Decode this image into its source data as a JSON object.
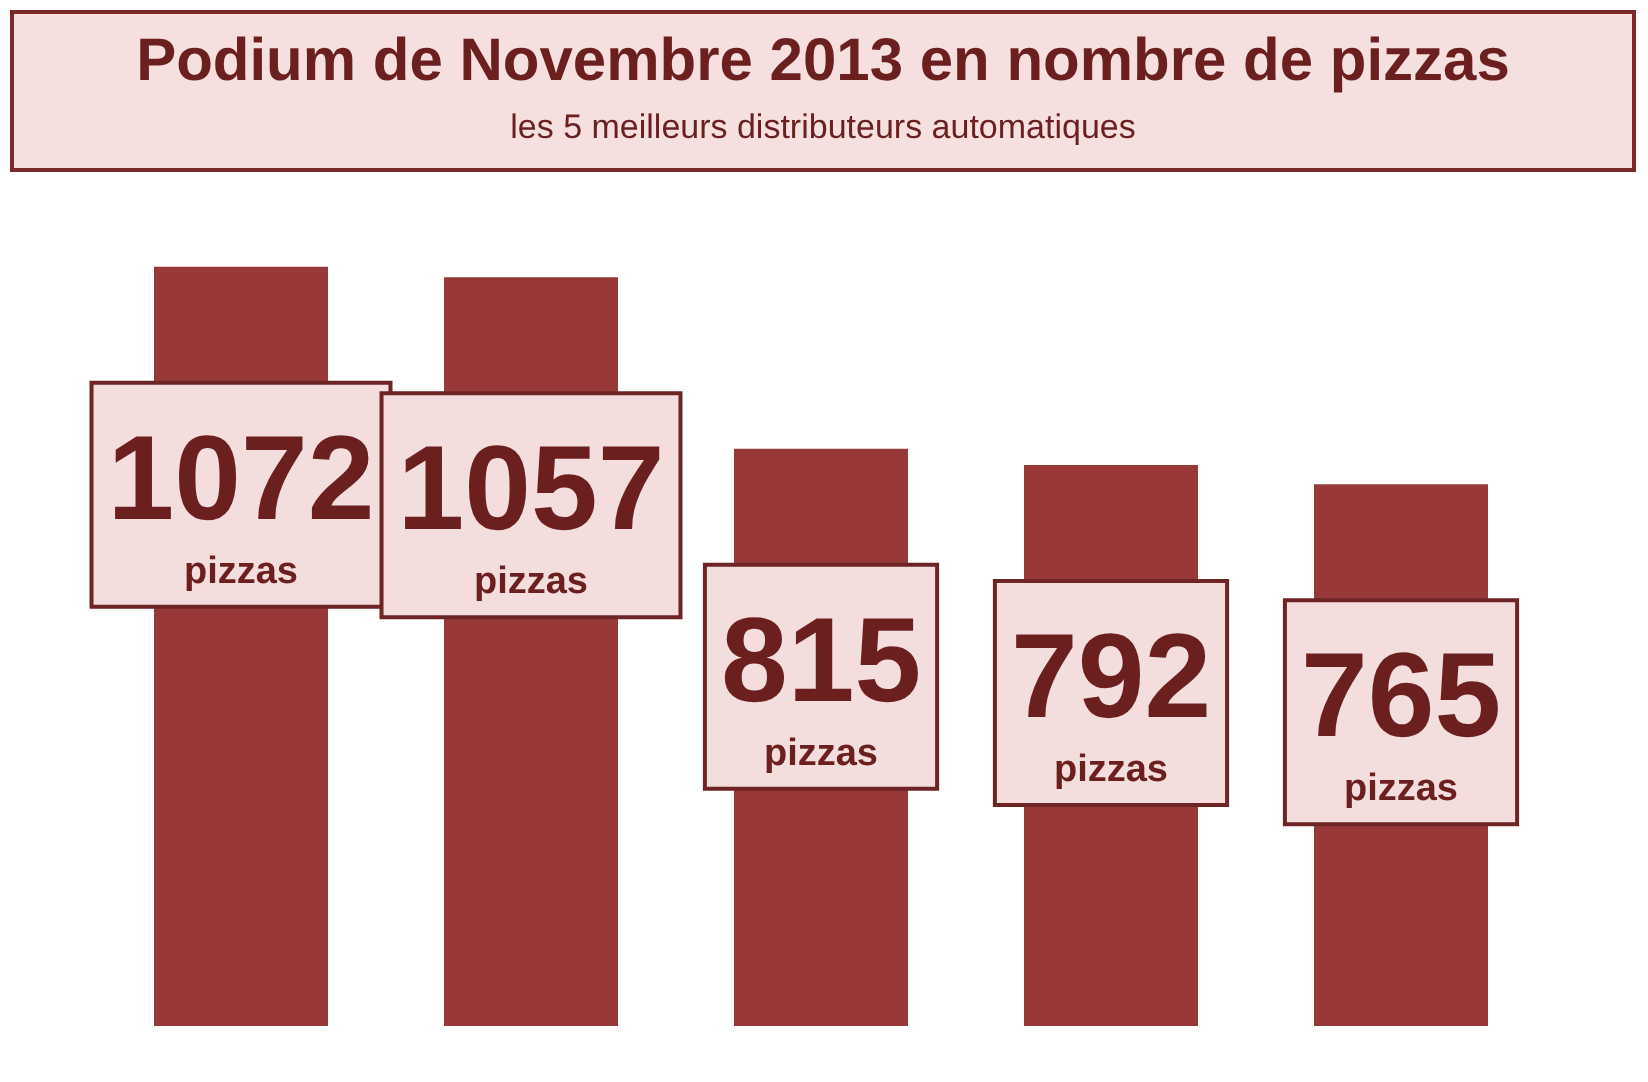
{
  "chart_data": {
    "type": "bar",
    "title": "Podium de Novembre 2013 en nombre de pizzas",
    "subtitle": "les 5 meilleurs distributeurs automatiques",
    "categories": [
      null,
      null,
      null,
      null,
      null
    ],
    "values": [
      1072,
      1057,
      815,
      792,
      765
    ],
    "color": "#983838",
    "value_labels": [
      "1072 pizzas",
      "1057 pizzas",
      "815 pizzas",
      "792 pizzas",
      "765 pizzas"
    ],
    "tick_labels": false
  }
}
